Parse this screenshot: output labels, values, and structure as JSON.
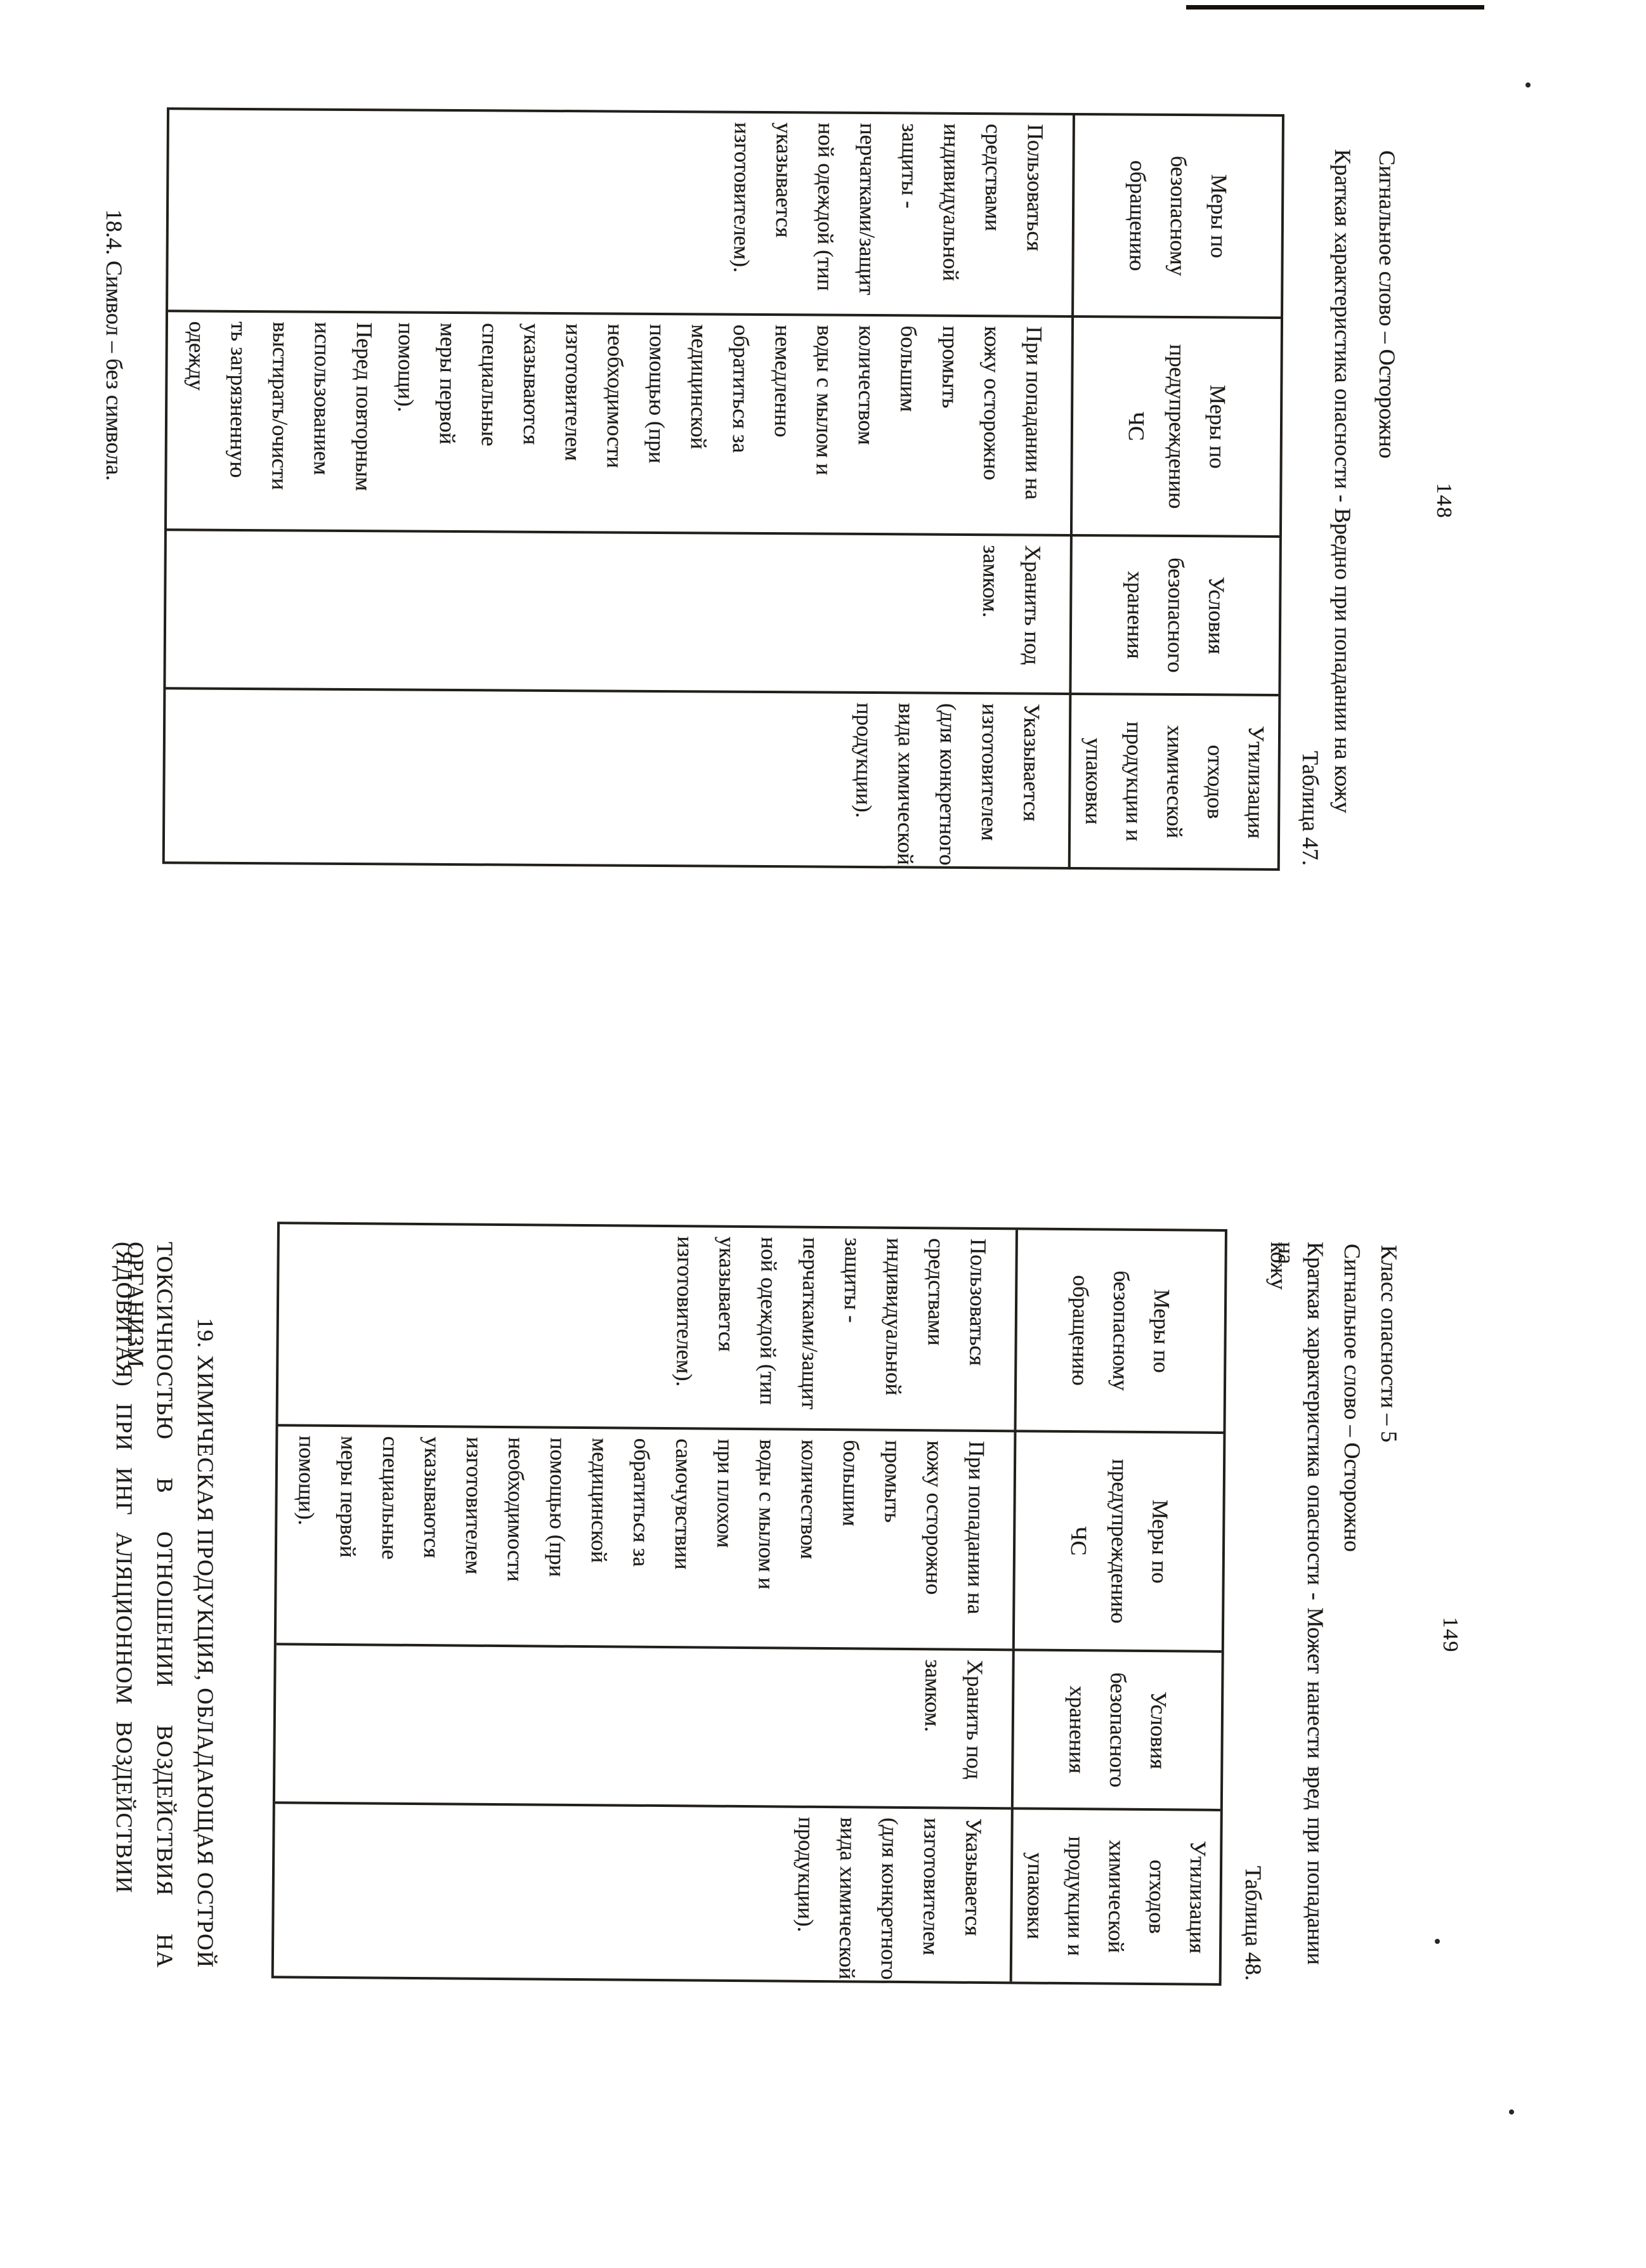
{
  "colors": {
    "paper": "#ffffff",
    "ink": "#1b1815"
  },
  "page148": {
    "page_number": "148",
    "signal_word": "Сигнальное слово – Осторожно",
    "hazard_brief": "Краткая характеристика опасности - Вредно при попадании на кожу",
    "table_caption": "Таблица 47.",
    "table": {
      "headers": [
        [
          "Меры по",
          "безопасному",
          "обращению"
        ],
        [
          "Меры по",
          "предупреждению",
          "ЧС"
        ],
        [
          "Условия",
          "безопасного",
          "хранения"
        ],
        [
          "Утилизация",
          "отходов",
          "химической",
          "продукции и",
          "упаковки"
        ]
      ],
      "row": [
        [
          "Пользоваться",
          "средствами",
          "индивидуальной",
          "защиты -",
          "перчатками/защит",
          "ной одеждой (тип",
          "указывается",
          "изготовителем)."
        ],
        [
          "При попадании на",
          "кожу осторожно",
          "промыть",
          "большим",
          "количеством",
          "воды с мылом и",
          "немедленно",
          "обратиться за",
          "медицинской",
          "помощью (при",
          "необходимости",
          "изготовителем",
          "указываются",
          "специальные",
          "меры первой",
          "помощи).",
          "Перед повторным",
          "использованием",
          "выстирать/очисти",
          "ть загрязненную",
          "одежду"
        ],
        [
          "Хранить под",
          "замком."
        ],
        [
          "Указывается",
          "изготовителем",
          "(для конкретного",
          "вида химической",
          "продукции)."
        ]
      ]
    },
    "symbol_note": "18.4. Символ – без символа."
  },
  "page149": {
    "page_number": "149",
    "hazard_class": "Класс опасности – 5",
    "signal_word": "Сигнальное слово – Осторожно",
    "hazard_brief_line1": "Краткая характеристика опасности - Может нанести вред при попадании на",
    "hazard_brief_line2": "кожу",
    "table_caption": "Таблица 48.",
    "table": {
      "headers": [
        [
          "Меры по",
          "безопасному",
          "обращению"
        ],
        [
          "Меры по",
          "предупреждению",
          "ЧС"
        ],
        [
          "Условия",
          "безопасного",
          "хранения"
        ],
        [
          "Утилизация",
          "отходов",
          "химической",
          "продукции и",
          "упаковки"
        ]
      ],
      "row": [
        [
          "Пользоваться",
          "средствами",
          "индивидуальной",
          "защиты -",
          "перчатками/защит",
          "ной одеждой (тип",
          "указывается",
          "изготовителем)."
        ],
        [
          "При попадании на",
          "кожу осторожно",
          "промыть",
          "большим",
          "количеством",
          "воды с мылом и",
          "при плохом",
          "самочувствии",
          "обратиться за",
          "медицинской",
          "помощью (при",
          "необходимости",
          "изготовителем",
          "указываются",
          "специальные",
          "меры первой",
          "помощи)."
        ],
        [
          "Хранить под",
          "замком."
        ],
        [
          "Указывается",
          "изготовителем",
          "(для конкретного",
          "вида химической",
          "продукции)."
        ]
      ]
    },
    "section_heading_line1": "19. ХИМИЧЕСКАЯ ПРОДУКЦИЯ, ОБЛАДАЮЩАЯ ОСТРОЙ",
    "section_heading_line2": "ТОКСИЧНОСТЬЮ В ОТНОШЕНИИ ВОЗДЕЙСТВИЯ НА ОРГАНИЗМ",
    "section_heading_line3": "(ЯДОВИТАЯ) ПРИ ИНГ АЛЯЦИОННОМ ВОЗДЕЙСТВИИ"
  }
}
